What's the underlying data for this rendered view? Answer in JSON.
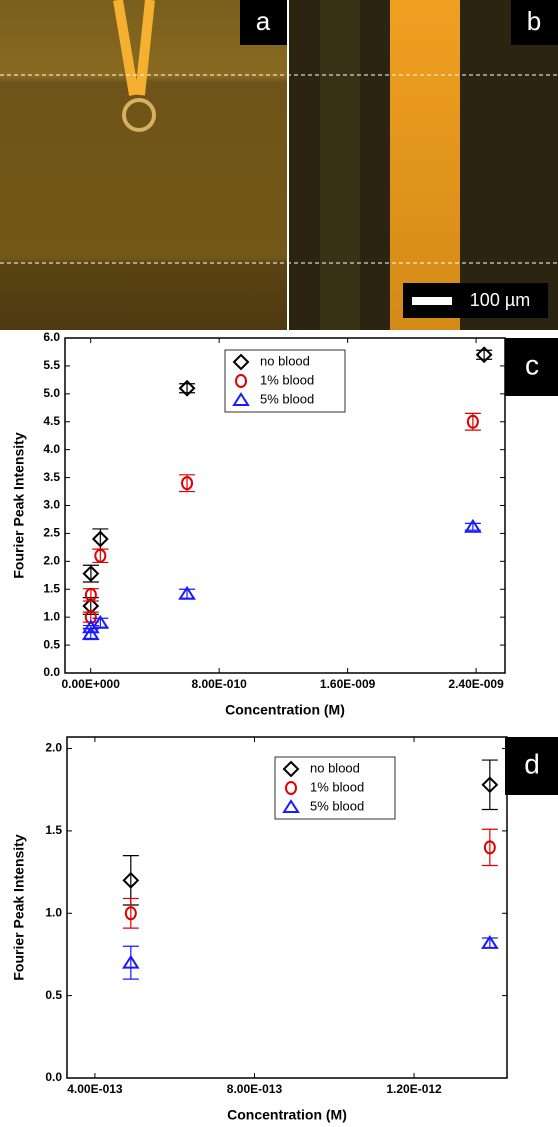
{
  "images": {
    "labels": [
      "a",
      "b"
    ],
    "scale_bar": "100 µm"
  },
  "chart_data": [
    {
      "type": "scatter",
      "label": "c",
      "x_label": "Concentration (M)",
      "y_label": "Fourier Peak Intensity",
      "xlim": [
        -1.6e-10,
        2.58e-09
      ],
      "xticks": [
        {
          "value": 0,
          "label": "0.00E+000"
        },
        {
          "value": 8e-10,
          "label": "8.00E-010"
        },
        {
          "value": 1.6e-09,
          "label": "1.60E-009"
        },
        {
          "value": 2.4e-09,
          "label": "2.40E-009"
        }
      ],
      "ylim": [
        0,
        6
      ],
      "yticks": [
        {
          "value": 0,
          "label": "0.0"
        },
        0.5,
        {
          "value": 1,
          "label": "1.0"
        },
        1.5,
        {
          "value": 2,
          "label": "2.0"
        },
        2.5,
        {
          "value": 3,
          "label": "3.0"
        },
        3.5,
        {
          "value": 4,
          "label": "4.0"
        },
        4.5,
        {
          "value": 5,
          "label": "5.0"
        },
        5.5,
        {
          "value": 6,
          "label": "6.0"
        }
      ],
      "series": [
        {
          "name": "no blood",
          "color": "#000000",
          "marker": "diamond",
          "x": [
            5e-13,
            1.25e-12,
            6e-11,
            6e-10,
            2.45e-09
          ],
          "values": [
            1.2,
            1.78,
            2.4,
            5.1,
            5.7
          ],
          "errors": [
            0.15,
            0.15,
            0.18,
            0.08,
            0.08
          ]
        },
        {
          "name": "1% blood",
          "color": "#e00000",
          "marker": "circle",
          "x": [
            5e-13,
            1.25e-12,
            6e-11,
            6e-10,
            2.38e-09
          ],
          "values": [
            1.0,
            1.4,
            2.1,
            3.4,
            4.5
          ],
          "errors": [
            0.09,
            0.11,
            0.12,
            0.15,
            0.15
          ]
        },
        {
          "name": "5% blood",
          "color": "#1a1aff",
          "marker": "triangle",
          "x": [
            5e-13,
            1.25e-12,
            6e-11,
            6e-10,
            2.38e-09
          ],
          "values": [
            0.7,
            0.82,
            0.9,
            1.42,
            2.62
          ],
          "errors": [
            0.1,
            0.03,
            0.08,
            0.08,
            0.06
          ]
        }
      ]
    },
    {
      "type": "scatter",
      "label": "d",
      "x_label": "Concentration (M)",
      "y_label": "Fourier Peak Intensity",
      "xlim": [
        3.3e-13,
        1.433e-12
      ],
      "xticks": [
        {
          "value": 4e-13,
          "label": "4.00E-013"
        },
        {
          "value": 8e-13,
          "label": "8.00E-013"
        },
        {
          "value": 1.2e-12,
          "label": "1.20E-012"
        }
      ],
      "ylim": [
        0,
        2.07
      ],
      "yticks": [
        {
          "value": 0,
          "label": "0.0"
        },
        0.5,
        {
          "value": 1,
          "label": "1.0"
        },
        1.5,
        {
          "value": 2,
          "label": "2.0"
        }
      ],
      "series": [
        {
          "name": "no blood",
          "color": "#000000",
          "marker": "diamond",
          "x": [
            4.9e-13,
            1.39e-12
          ],
          "values": [
            1.2,
            1.78
          ],
          "errors": [
            0.15,
            0.15
          ]
        },
        {
          "name": "1% blood",
          "color": "#e00000",
          "marker": "circle",
          "x": [
            4.9e-13,
            1.39e-12
          ],
          "values": [
            1.0,
            1.4
          ],
          "errors": [
            0.09,
            0.11
          ]
        },
        {
          "name": "5% blood",
          "color": "#1a1aff",
          "marker": "triangle",
          "x": [
            4.9e-13,
            1.39e-12
          ],
          "values": [
            0.7,
            0.82
          ],
          "errors": [
            0.1,
            0.03
          ]
        }
      ]
    }
  ]
}
